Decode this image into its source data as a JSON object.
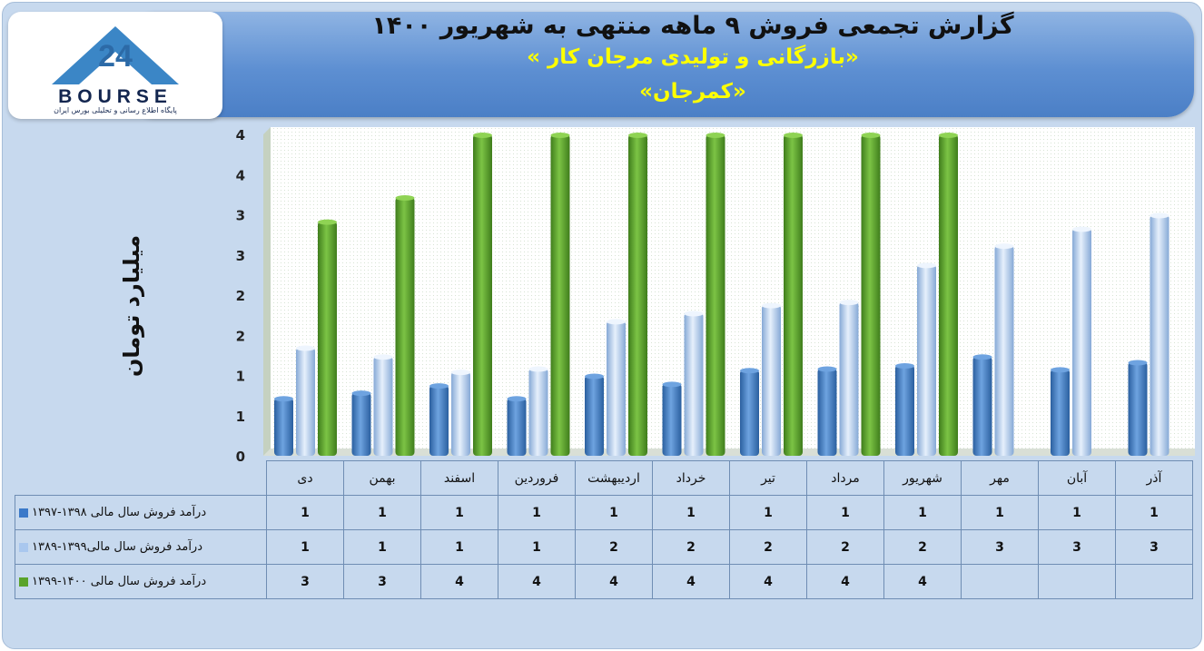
{
  "header": {
    "title": "گزارش تجمعی فروش ۹ ماهه منتهی به شهریور ۱۴۰۰",
    "company": "«بازرگانی و تولیدی مرجان کار »",
    "symbol": "«کمرجان»"
  },
  "logo": {
    "word": "BOURSE",
    "number": "24",
    "subtitle": "پایگاه اطلاع رسانی و تحلیلی بورس ایران"
  },
  "colors": {
    "series1": "#3b79c9",
    "series2": "#a9c7ee",
    "series3": "#5aa32a",
    "banner": "#5d8fd2",
    "frame": "#c7d9ee"
  },
  "chart_data": {
    "type": "bar",
    "ylabel": "میلیارد تومان",
    "yticks": [
      "0",
      "1",
      "1",
      "2",
      "2",
      "3",
      "3",
      "4",
      "4"
    ],
    "ylim": [
      0,
      4
    ],
    "grid": false,
    "categories": [
      "دی",
      "بهمن",
      "اسفند",
      "فروردین",
      "اردیبهشت",
      "خرداد",
      "تیر",
      "مرداد",
      "شهریور",
      "مهر",
      "آبان",
      "آذر"
    ],
    "series": [
      {
        "name": "درآمد فروش سال مالی ۱۳۹۸-۱۳۹۷",
        "values": [
          0.72,
          0.79,
          0.88,
          0.72,
          1.0,
          0.9,
          1.07,
          1.09,
          1.13,
          1.24,
          1.08,
          1.17
        ],
        "table_values": [
          "1",
          "1",
          "1",
          "1",
          "1",
          "1",
          "1",
          "1",
          "1",
          "1",
          "1",
          "1"
        ]
      },
      {
        "name": "درآمد فروش سال مالی۱۳۹۹-۱۳۸۹",
        "values": [
          1.35,
          1.24,
          1.05,
          1.09,
          1.68,
          1.78,
          1.88,
          1.92,
          2.38,
          2.62,
          2.83,
          3.0
        ],
        "table_values": [
          "1",
          "1",
          "1",
          "1",
          "2",
          "2",
          "2",
          "2",
          "2",
          "3",
          "3",
          "3"
        ]
      },
      {
        "name": "درآمد فروش سال مالی ۱۴۰۰-۱۳۹۹",
        "values": [
          2.92,
          3.22,
          4.0,
          4.0,
          4.0,
          4.0,
          4.0,
          4.0,
          4.0,
          null,
          null,
          null
        ],
        "table_values": [
          "3",
          "3",
          "4",
          "4",
          "4",
          "4",
          "4",
          "4",
          "4",
          "",
          "",
          ""
        ]
      }
    ]
  }
}
